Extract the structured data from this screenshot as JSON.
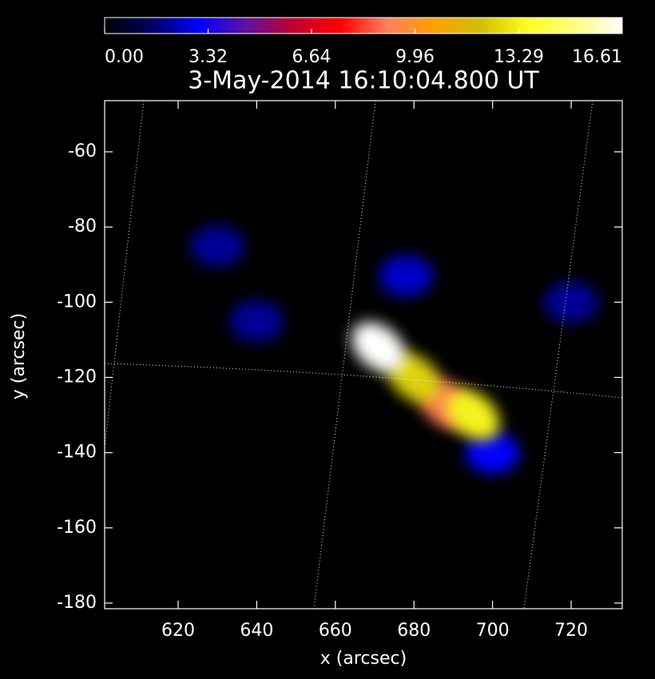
{
  "chart_data": {
    "type": "image",
    "title": "3-May-2014 16:10:04.800 UT",
    "xlabel": "x (arcsec)",
    "ylabel": "y (arcsec)",
    "xlim": [
      601.3,
      733.0
    ],
    "ylim": [
      -181.5,
      -46.4
    ],
    "xticks": [
      620,
      640,
      660,
      680,
      700,
      720
    ],
    "yticks": [
      -60,
      -80,
      -100,
      -120,
      -140,
      -160,
      -180
    ],
    "colormap": [
      "#000000",
      "#000060",
      "#0000ff",
      "#6010a0",
      "#c00030",
      "#ff0000",
      "#ff8060",
      "#ffa000",
      "#d0c000",
      "#ffff20",
      "#ffff80",
      "#ffffff"
    ],
    "clim": [
      0,
      16.61
    ],
    "cticks": [
      {
        "value": 0,
        "label": "0.00"
      },
      3.32,
      6.64,
      9.96,
      13.29,
      16.61
    ],
    "x": [
      630,
      640,
      720,
      700,
      678,
      688,
      695,
      680,
      671
    ],
    "y": [
      -85,
      -105,
      -100,
      -140,
      -93,
      -127,
      -130,
      -120,
      -112
    ],
    "values": [
      2,
      2,
      2,
      3,
      2.5,
      9,
      13.3,
      12.5,
      16.6
    ]
  }
}
